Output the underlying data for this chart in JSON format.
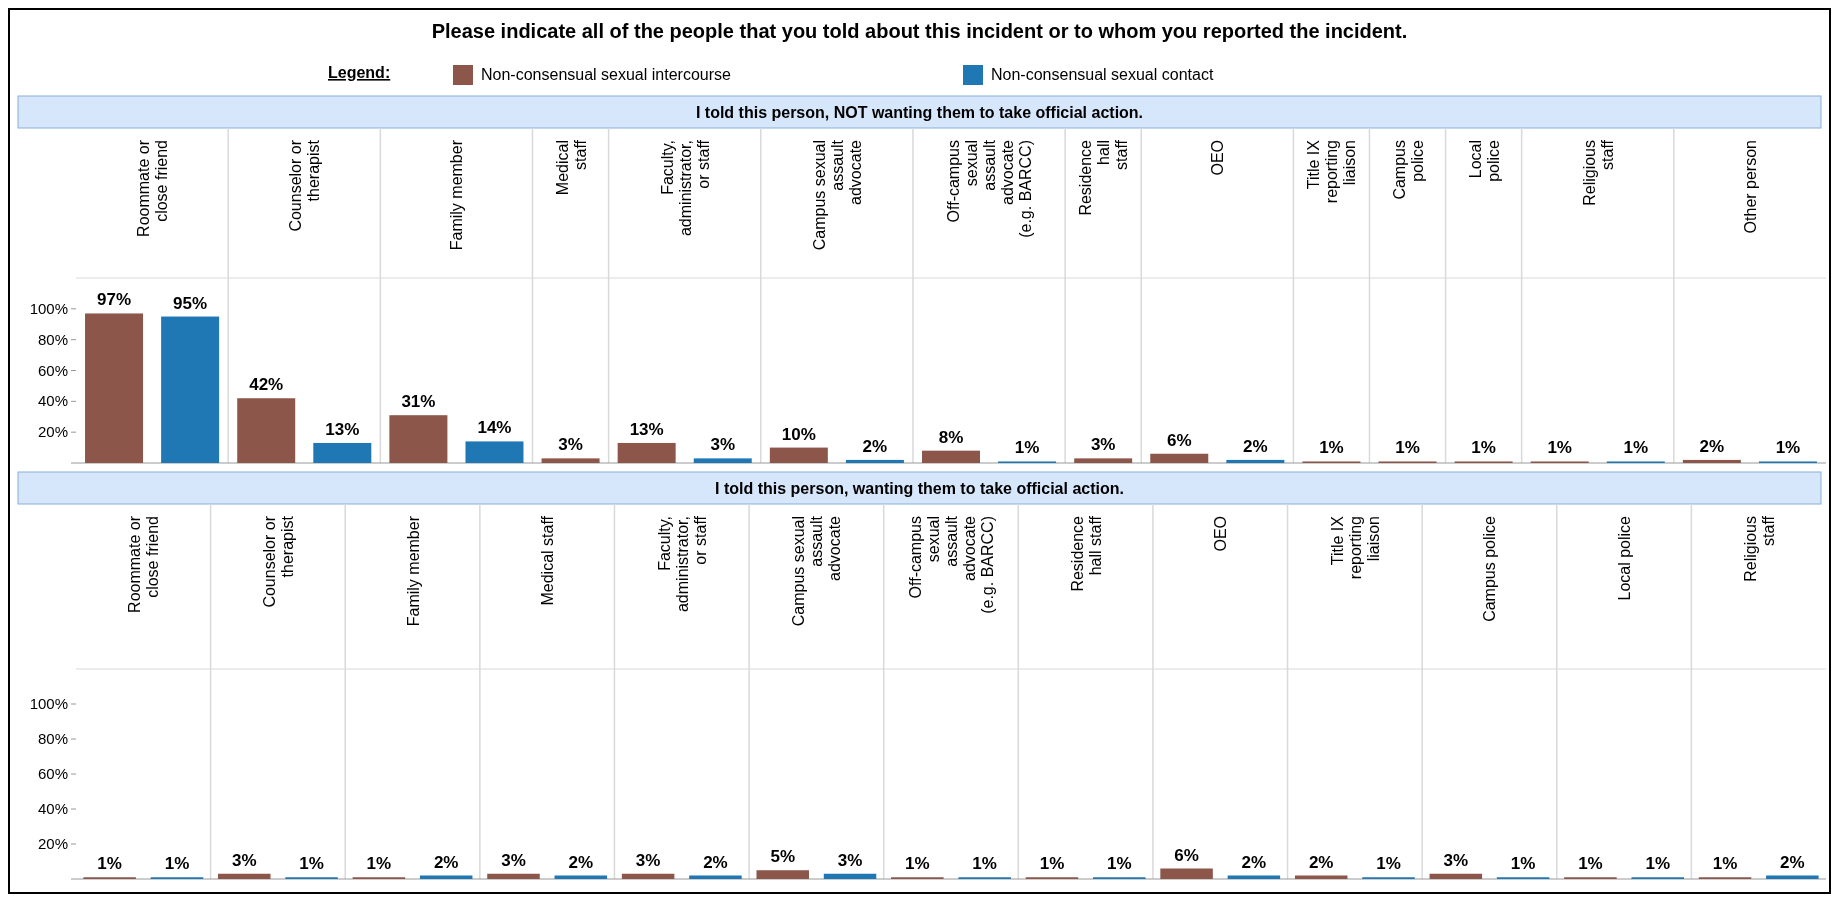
{
  "chart_data": [
    {
      "type": "bar",
      "title": "Please indicate all of the people that you told about this incident or to whom you reported the incident.",
      "subtitle": "I told this person, NOT wanting them to take official action.",
      "legend": "top",
      "legend_title": "Legend:",
      "categories": [
        "Roommate or close friend",
        "Counselor or therapist",
        "Family member",
        "Medical staff",
        "Faculty, administrator, or staff",
        "Campus sexual assault advocate",
        "Off-campus sexual assault advocate (e.g. BARCC)",
        "Residence hall staff",
        "OEO",
        "Title IX reporting liaison",
        "Campus police",
        "Local police",
        "Religious staff",
        "Other person"
      ],
      "series": [
        {
          "name": "Non-consensual sexual intercourse",
          "color": "#8c564b",
          "values": [
            97,
            42,
            31,
            3,
            13,
            10,
            8,
            3,
            6,
            1,
            1,
            1,
            1,
            2
          ],
          "value_labels": [
            "97%",
            "42%",
            "31%",
            "3%",
            "13%",
            "10%",
            "8%",
            "3%",
            "6%",
            "1%",
            "1%",
            "1%",
            "1%",
            "2%"
          ]
        },
        {
          "name": "Non-consensual sexual contact",
          "color": "#1f77b4",
          "values": [
            95,
            13,
            14,
            null,
            3,
            2,
            1,
            null,
            2,
            null,
            null,
            null,
            1,
            1
          ],
          "value_labels": [
            "95%",
            "13%",
            "14%",
            null,
            "3%",
            "2%",
            "1%",
            null,
            "2%",
            null,
            null,
            null,
            "1%",
            "1%"
          ]
        }
      ],
      "ylim": [
        0,
        120
      ],
      "yticks": [
        {
          "value": 20,
          "label": "20%"
        },
        {
          "value": 40,
          "label": "40%"
        },
        {
          "value": 60,
          "label": "60%"
        },
        {
          "value": 80,
          "label": "80%"
        },
        {
          "value": 100,
          "label": "100%"
        }
      ],
      "grid": "x"
    },
    {
      "type": "bar",
      "title": "I told this person, wanting them to take official action.",
      "categories": [
        "Roommate or close friend",
        "Counselor or therapist",
        "Family member",
        "Medical staff",
        "Faculty, administrator, or staff",
        "Campus sexual assault advocate",
        "Off-campus sexual assault advocate (e.g. BARCC)",
        "Residence hall staff",
        "OEO",
        "Title IX reporting liaison",
        "Campus police",
        "Local police",
        "Religious staff"
      ],
      "series": [
        {
          "color": "#8c564b",
          "values": [
            1,
            3,
            1,
            3,
            3,
            5,
            1,
            1,
            6,
            2,
            3,
            1,
            1
          ],
          "value_labels": [
            "1%",
            "3%",
            "1%",
            "3%",
            "3%",
            "5%",
            "1%",
            "1%",
            "6%",
            "2%",
            "3%",
            "1%",
            "1%"
          ]
        },
        {
          "color": "#1f77b4",
          "values": [
            1,
            1,
            2,
            2,
            2,
            3,
            1,
            1,
            2,
            1,
            1,
            1,
            2
          ],
          "value_labels": [
            "1%",
            "1%",
            "2%",
            "2%",
            "2%",
            "3%",
            "1%",
            "1%",
            "2%",
            "1%",
            "1%",
            "1%",
            "2%"
          ]
        }
      ],
      "ylim": [
        0,
        120
      ],
      "yticks": [
        {
          "value": 20,
          "label": "20%"
        },
        {
          "value": 40,
          "label": "40%"
        },
        {
          "value": 60,
          "label": "60%"
        },
        {
          "value": 80,
          "label": "80%"
        },
        {
          "value": 100,
          "label": "100%"
        }
      ],
      "grid": "x"
    }
  ]
}
